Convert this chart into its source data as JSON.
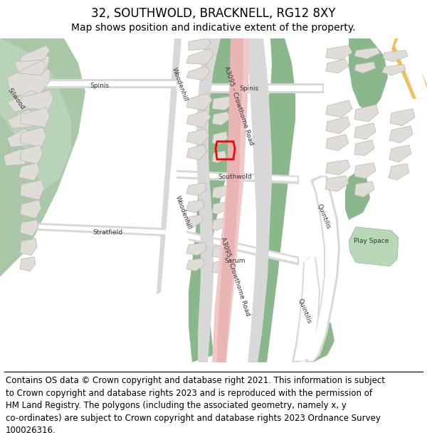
{
  "title": "32, SOUTHWOLD, BRACKNELL, RG12 8XY",
  "subtitle": "Map shows position and indicative extent of the property.",
  "footer_text": "Contains OS data © Crown copyright and database right 2021. This information is subject\nto Crown copyright and database rights 2023 and is reproduced with the permission of\nHM Land Registry. The polygons (including the associated geometry, namely x, y\nco-ordinates) are subject to Crown copyright and database rights 2023 Ordnance Survey\n100026316.",
  "title_fontsize": 12,
  "subtitle_fontsize": 10,
  "footer_fontsize": 8.5,
  "fig_width": 6.0,
  "fig_height": 6.25,
  "map_bg": "#ffffff",
  "green1": "#8ab88a",
  "green2": "#a8c8a8",
  "road_grey": "#d8d8d8",
  "road_white": "#ffffff",
  "road_pink": "#f0c8c8",
  "road_pink2": "#e8b4b4",
  "building_fill": "#e0ddd8",
  "building_edge": "#b8b5b0",
  "highlight_color": "#ff0000",
  "highlight_lw": 2.0,
  "road_orange": "#f0c060",
  "road_light_grey": "#e8e8e8"
}
